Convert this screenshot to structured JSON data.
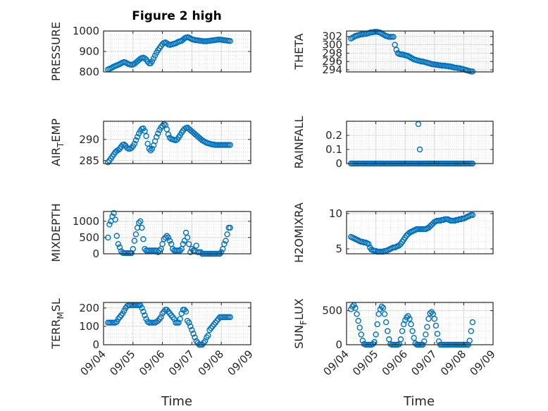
{
  "figure": {
    "title": "Figure 2 high"
  },
  "colors": {
    "marker": "#0072BD",
    "axis": "#262626",
    "grid": "#d9d9d9"
  },
  "chart_data": [
    {
      "id": "pressure",
      "type": "scatter",
      "ylabel": "PRESSURE",
      "ylim": [
        800,
        1000
      ],
      "yticks": [
        800,
        900,
        1000
      ],
      "xlim": [
        0,
        5
      ],
      "x": [
        0.15,
        0.2,
        0.25,
        0.3,
        0.35,
        0.4,
        0.45,
        0.5,
        0.55,
        0.6,
        0.65,
        0.7,
        0.75,
        0.8,
        0.85,
        0.9,
        0.95,
        1.0,
        1.05,
        1.1,
        1.15,
        1.2,
        1.25,
        1.3,
        1.35,
        1.4,
        1.45,
        1.5,
        1.55,
        1.6,
        1.65,
        1.7,
        1.75,
        1.8,
        1.85,
        1.9,
        1.95,
        2.0,
        2.05,
        2.1,
        2.15,
        2.2,
        2.25,
        2.3,
        2.35,
        2.4,
        2.45,
        2.5,
        2.55,
        2.6,
        2.65,
        2.7,
        2.75,
        2.8,
        2.85,
        2.9,
        2.95,
        3.0,
        3.05,
        3.1,
        3.15,
        3.2,
        3.25,
        3.3,
        3.35,
        3.4,
        3.45,
        3.5,
        3.55,
        3.6,
        3.65,
        3.7,
        3.75,
        3.8,
        3.85,
        3.9,
        3.95,
        4.0,
        4.05,
        4.1,
        4.15,
        4.2,
        4.25,
        4.3
      ],
      "y": [
        812,
        815,
        818,
        822,
        826,
        829,
        832,
        835,
        838,
        842,
        846,
        848,
        846,
        842,
        838,
        836,
        835,
        836,
        840,
        846,
        852,
        858,
        864,
        868,
        870,
        866,
        860,
        850,
        842,
        842,
        852,
        866,
        880,
        894,
        906,
        916,
        926,
        936,
        942,
        944,
        940,
        934,
        932,
        934,
        936,
        938,
        940,
        944,
        948,
        950,
        952,
        958,
        964,
        968,
        970,
        968,
        964,
        960,
        958,
        956,
        955,
        954,
        953,
        952,
        951,
        950,
        950,
        950,
        951,
        952,
        953,
        954,
        955,
        956,
        957,
        958,
        958,
        957,
        956,
        955,
        954,
        953,
        952,
        951
      ]
    },
    {
      "id": "theta",
      "type": "scatter",
      "ylabel": "THETA",
      "ylim": [
        293.5,
        303.3
      ],
      "yticks": [
        294,
        296,
        298,
        300,
        302
      ],
      "xlim": [
        0,
        5
      ],
      "x": [
        0.15,
        0.2,
        0.25,
        0.3,
        0.35,
        0.4,
        0.45,
        0.5,
        0.55,
        0.6,
        0.65,
        0.7,
        0.75,
        0.8,
        0.85,
        0.9,
        0.95,
        1.0,
        1.05,
        1.1,
        1.15,
        1.2,
        1.25,
        1.3,
        1.35,
        1.4,
        1.45,
        1.5,
        1.55,
        1.6,
        1.65,
        1.7,
        1.75,
        1.8,
        1.85,
        1.9,
        1.95,
        2.0,
        2.05,
        2.1,
        2.15,
        2.2,
        2.25,
        2.3,
        2.35,
        2.4,
        2.45,
        2.5,
        2.55,
        2.6,
        2.65,
        2.7,
        2.75,
        2.8,
        2.85,
        2.9,
        2.95,
        3.0,
        3.05,
        3.1,
        3.15,
        3.2,
        3.25,
        3.3,
        3.35,
        3.4,
        3.45,
        3.5,
        3.55,
        3.6,
        3.65,
        3.7,
        3.75,
        3.8,
        3.85,
        3.9,
        3.95,
        4.0,
        4.05,
        4.1,
        4.15,
        4.2,
        4.25,
        4.3
      ],
      "y": [
        301.5,
        301.7,
        301.9,
        302.1,
        302.2,
        302.3,
        302.4,
        302.5,
        302.5,
        302.6,
        302.6,
        302.7,
        302.8,
        302.9,
        303.0,
        303.0,
        303.1,
        303.1,
        303.1,
        303.0,
        302.9,
        302.7,
        302.5,
        302.3,
        302.1,
        302.0,
        301.9,
        301.9,
        301.9,
        301.9,
        300.0,
        298.8,
        298.0,
        297.8,
        297.7,
        297.7,
        297.6,
        297.5,
        297.4,
        297.3,
        297.1,
        296.9,
        296.7,
        296.5,
        296.4,
        296.3,
        296.2,
        296.1,
        296.0,
        296.0,
        295.9,
        295.8,
        295.7,
        295.6,
        295.5,
        295.4,
        295.3,
        295.3,
        295.2,
        295.2,
        295.1,
        295.1,
        295.0,
        295.0,
        295.0,
        294.9,
        294.9,
        294.8,
        294.8,
        294.7,
        294.6,
        294.5,
        294.5,
        294.4,
        294.4,
        294.3,
        294.2,
        294.1,
        294.0,
        293.9,
        293.8,
        293.7,
        293.6,
        293.6
      ]
    },
    {
      "id": "air_temp",
      "type": "scatter",
      "ylabel_main": "AIR",
      "ylabel_sub": "T",
      "ylabel_tail": "EMP",
      "ylim": [
        284.3,
        294.3
      ],
      "yticks": [
        285,
        290
      ],
      "xlim": [
        0,
        5
      ],
      "x": [
        0.15,
        0.2,
        0.25,
        0.3,
        0.35,
        0.4,
        0.45,
        0.5,
        0.55,
        0.6,
        0.65,
        0.7,
        0.75,
        0.8,
        0.85,
        0.9,
        0.95,
        1.0,
        1.05,
        1.1,
        1.15,
        1.2,
        1.25,
        1.3,
        1.35,
        1.4,
        1.45,
        1.5,
        1.55,
        1.6,
        1.65,
        1.7,
        1.75,
        1.8,
        1.85,
        1.9,
        1.95,
        2.0,
        2.05,
        2.1,
        2.15,
        2.2,
        2.25,
        2.3,
        2.35,
        2.4,
        2.45,
        2.5,
        2.55,
        2.6,
        2.65,
        2.7,
        2.75,
        2.8,
        2.85,
        2.9,
        2.95,
        3.0,
        3.05,
        3.1,
        3.15,
        3.2,
        3.25,
        3.3,
        3.35,
        3.4,
        3.45,
        3.5,
        3.55,
        3.6,
        3.65,
        3.7,
        3.75,
        3.8,
        3.85,
        3.9,
        3.95,
        4.0,
        4.05,
        4.1,
        4.15,
        4.2,
        4.25,
        4.3
      ],
      "y": [
        284.6,
        285.0,
        285.5,
        286.0,
        286.5,
        287.0,
        287.3,
        287.5,
        287.8,
        288.3,
        288.7,
        288.8,
        288.5,
        288.0,
        287.8,
        287.8,
        288.0,
        288.4,
        289.0,
        289.8,
        290.6,
        291.4,
        292.0,
        292.5,
        292.6,
        292.0,
        290.8,
        289.0,
        287.8,
        287.4,
        287.8,
        288.6,
        289.6,
        290.6,
        291.4,
        292.2,
        292.8,
        293.2,
        293.6,
        293.4,
        292.4,
        291.2,
        290.4,
        290.1,
        290.0,
        289.9,
        289.8,
        290.0,
        290.5,
        291.0,
        291.6,
        292.1,
        292.5,
        292.7,
        292.8,
        292.5,
        292.2,
        291.9,
        291.6,
        291.3,
        291.0,
        290.7,
        290.4,
        290.1,
        289.8,
        289.6,
        289.4,
        289.2,
        289.1,
        289.0,
        288.9,
        288.8,
        288.8,
        288.7,
        288.7,
        288.7,
        288.7,
        288.7,
        288.7,
        288.7,
        288.7,
        288.7,
        288.7,
        288.7
      ]
    },
    {
      "id": "rainfall",
      "type": "scatter",
      "ylabel": "RAINFALL",
      "ylim": [
        0,
        0.3
      ],
      "yticks": [
        0,
        0.1,
        0.2
      ],
      "yticklabels": [
        "0",
        "0.1",
        "0.2"
      ],
      "xlim": [
        0,
        5
      ],
      "x_range": [
        0.15,
        4.3
      ],
      "x_step": 0.05,
      "baseline": 0,
      "extra_points": [
        {
          "x": 2.45,
          "y": 0.28
        },
        {
          "x": 2.5,
          "y": 0.1
        }
      ]
    },
    {
      "id": "mixdepth",
      "type": "scatter",
      "ylabel": "MIXDEPTH",
      "ylim": [
        0,
        1300
      ],
      "yticks": [
        0,
        500,
        1000
      ],
      "xlim": [
        0,
        5
      ],
      "x": [
        0.15,
        0.2,
        0.25,
        0.3,
        0.35,
        0.4,
        0.45,
        0.5,
        0.55,
        0.6,
        0.65,
        0.7,
        0.75,
        0.8,
        0.85,
        0.9,
        0.95,
        1.0,
        1.05,
        1.1,
        1.15,
        1.2,
        1.25,
        1.3,
        1.35,
        1.4,
        1.45,
        1.5,
        1.55,
        1.6,
        1.65,
        1.7,
        1.75,
        1.8,
        1.85,
        1.9,
        1.95,
        2.0,
        2.05,
        2.1,
        2.15,
        2.2,
        2.25,
        2.3,
        2.35,
        2.4,
        2.45,
        2.5,
        2.55,
        2.6,
        2.65,
        2.7,
        2.75,
        2.8,
        2.85,
        2.9,
        2.95,
        3.0,
        3.05,
        3.1,
        3.15,
        3.2,
        3.25,
        3.3,
        3.35,
        3.4,
        3.45,
        3.5,
        3.55,
        3.6,
        3.65,
        3.7,
        3.75,
        3.8,
        3.85,
        3.9,
        3.95,
        4.0,
        4.05,
        4.1,
        4.15,
        4.2,
        4.25,
        4.3
      ],
      "y": [
        500,
        900,
        1000,
        1150,
        1250,
        1050,
        550,
        300,
        200,
        80,
        30,
        20,
        20,
        20,
        20,
        20,
        20,
        150,
        400,
        600,
        800,
        950,
        1000,
        800,
        450,
        150,
        100,
        100,
        100,
        100,
        100,
        100,
        100,
        100,
        50,
        100,
        150,
        300,
        450,
        500,
        550,
        500,
        400,
        300,
        150,
        100,
        100,
        100,
        100,
        100,
        150,
        300,
        400,
        650,
        500,
        300,
        50,
        150,
        100,
        100,
        250,
        50,
        50,
        50,
        0,
        0,
        0,
        0,
        0,
        0,
        0,
        0,
        0,
        0,
        0,
        0,
        0,
        50,
        150,
        300,
        400,
        600,
        800,
        800
      ]
    },
    {
      "id": "h2omixra",
      "type": "scatter",
      "ylabel": "H2OMIXRA",
      "ylim": [
        4.3,
        10.3
      ],
      "yticks": [
        5,
        10
      ],
      "xlim": [
        0,
        5
      ],
      "x": [
        0.15,
        0.2,
        0.25,
        0.3,
        0.35,
        0.4,
        0.45,
        0.5,
        0.55,
        0.6,
        0.65,
        0.7,
        0.75,
        0.8,
        0.85,
        0.9,
        0.95,
        1.0,
        1.05,
        1.1,
        1.15,
        1.2,
        1.25,
        1.3,
        1.35,
        1.4,
        1.45,
        1.5,
        1.55,
        1.6,
        1.65,
        1.7,
        1.75,
        1.8,
        1.85,
        1.9,
        1.95,
        2.0,
        2.05,
        2.1,
        2.15,
        2.2,
        2.25,
        2.3,
        2.35,
        2.4,
        2.45,
        2.5,
        2.55,
        2.6,
        2.65,
        2.7,
        2.75,
        2.8,
        2.85,
        2.9,
        2.95,
        3.0,
        3.05,
        3.1,
        3.15,
        3.2,
        3.25,
        3.3,
        3.35,
        3.4,
        3.45,
        3.5,
        3.55,
        3.6,
        3.65,
        3.7,
        3.75,
        3.8,
        3.85,
        3.9,
        3.95,
        4.0,
        4.05,
        4.1,
        4.15,
        4.2,
        4.25,
        4.3
      ],
      "y": [
        6.7,
        6.6,
        6.5,
        6.4,
        6.3,
        6.2,
        6.1,
        6.0,
        6.0,
        5.9,
        5.9,
        5.8,
        5.7,
        5.2,
        4.9,
        4.8,
        4.7,
        4.7,
        4.6,
        4.6,
        4.6,
        4.6,
        4.6,
        4.7,
        4.7,
        4.8,
        4.9,
        5.0,
        5.1,
        5.2,
        5.2,
        5.3,
        5.4,
        5.5,
        5.7,
        6.0,
        6.3,
        6.6,
        6.9,
        7.1,
        7.3,
        7.4,
        7.5,
        7.6,
        7.7,
        7.8,
        7.8,
        7.8,
        7.8,
        7.8,
        7.8,
        7.8,
        7.9,
        8.0,
        8.2,
        8.4,
        8.6,
        8.8,
        8.9,
        9.0,
        9.0,
        9.0,
        9.1,
        9.1,
        9.2,
        9.2,
        9.2,
        9.1,
        9.0,
        9.0,
        9.0,
        9.0,
        9.1,
        9.1,
        9.2,
        9.2,
        9.3,
        9.3,
        9.4,
        9.5,
        9.6,
        9.7,
        9.8,
        9.8
      ]
    },
    {
      "id": "terr_msl",
      "type": "scatter",
      "ylabel_main": "TERR",
      "ylabel_sub": "M",
      "ylabel_tail": "SL",
      "ylim": [
        0,
        230
      ],
      "yticks": [
        0,
        100,
        200
      ],
      "xlim": [
        0,
        5
      ],
      "x": [
        0.15,
        0.2,
        0.25,
        0.3,
        0.35,
        0.4,
        0.45,
        0.5,
        0.55,
        0.6,
        0.65,
        0.7,
        0.75,
        0.8,
        0.85,
        0.9,
        0.95,
        1.0,
        1.05,
        1.1,
        1.15,
        1.2,
        1.25,
        1.3,
        1.35,
        1.4,
        1.45,
        1.5,
        1.55,
        1.6,
        1.65,
        1.7,
        1.75,
        1.8,
        1.85,
        1.9,
        1.95,
        2.0,
        2.05,
        2.1,
        2.15,
        2.2,
        2.25,
        2.3,
        2.35,
        2.4,
        2.45,
        2.5,
        2.55,
        2.6,
        2.65,
        2.7,
        2.75,
        2.8,
        2.85,
        2.9,
        2.95,
        3.0,
        3.05,
        3.1,
        3.15,
        3.2,
        3.25,
        3.3,
        3.35,
        3.4,
        3.45,
        3.5,
        3.55,
        3.6,
        3.65,
        3.7,
        3.75,
        3.8,
        3.85,
        3.9,
        3.95,
        4.0,
        4.05,
        4.1,
        4.15,
        4.2,
        4.25,
        4.3
      ],
      "y": [
        120,
        120,
        120,
        120,
        120,
        120,
        125,
        140,
        150,
        160,
        170,
        185,
        200,
        210,
        215,
        215,
        215,
        215,
        215,
        215,
        215,
        215,
        215,
        200,
        180,
        160,
        140,
        125,
        120,
        120,
        120,
        120,
        120,
        125,
        130,
        140,
        150,
        170,
        180,
        190,
        190,
        180,
        170,
        160,
        150,
        140,
        120,
        120,
        120,
        140,
        170,
        190,
        190,
        180,
        130,
        120,
        100,
        80,
        60,
        40,
        20,
        10,
        0,
        0,
        0,
        10,
        20,
        40,
        50,
        80,
        90,
        100,
        110,
        120,
        130,
        140,
        150,
        150,
        150,
        150,
        150,
        150,
        150,
        150
      ]
    },
    {
      "id": "sun_flux",
      "type": "scatter",
      "ylabel_main": "SUN",
      "ylabel_sub": "F",
      "ylabel_tail": "LUX",
      "ylim": [
        0,
        620
      ],
      "yticks": [
        0,
        500
      ],
      "xlim": [
        0,
        5
      ],
      "x": [
        0.15,
        0.2,
        0.25,
        0.3,
        0.35,
        0.4,
        0.45,
        0.5,
        0.55,
        0.6,
        0.65,
        0.7,
        0.75,
        0.8,
        0.85,
        0.9,
        0.95,
        1.0,
        1.05,
        1.1,
        1.15,
        1.2,
        1.25,
        1.3,
        1.35,
        1.4,
        1.45,
        1.5,
        1.55,
        1.6,
        1.65,
        1.7,
        1.75,
        1.8,
        1.85,
        1.9,
        1.95,
        2.0,
        2.05,
        2.1,
        2.15,
        2.2,
        2.25,
        2.3,
        2.35,
        2.4,
        2.45,
        2.5,
        2.55,
        2.6,
        2.65,
        2.7,
        2.75,
        2.8,
        2.85,
        2.9,
        2.95,
        3.0,
        3.05,
        3.1,
        3.15,
        3.2,
        3.25,
        3.3,
        3.35,
        3.4,
        3.45,
        3.5,
        3.55,
        3.6,
        3.65,
        3.7,
        3.75,
        3.8,
        3.85,
        3.9,
        3.95,
        4.0,
        4.05,
        4.1,
        4.15,
        4.2,
        4.25,
        4.3
      ],
      "y": [
        520,
        560,
        580,
        540,
        450,
        350,
        250,
        150,
        60,
        10,
        0,
        0,
        0,
        0,
        0,
        10,
        40,
        150,
        300,
        450,
        520,
        560,
        540,
        450,
        330,
        200,
        80,
        10,
        0,
        0,
        0,
        0,
        0,
        10,
        80,
        200,
        300,
        360,
        400,
        420,
        380,
        300,
        200,
        100,
        20,
        0,
        0,
        0,
        0,
        0,
        50,
        150,
        260,
        380,
        460,
        480,
        450,
        380,
        280,
        160,
        50,
        0,
        0,
        0,
        0,
        0,
        0,
        0,
        0,
        0,
        0,
        0,
        0,
        0,
        0,
        0,
        0,
        0,
        0,
        0,
        0,
        60,
        200,
        330
      ]
    }
  ],
  "x_axis": {
    "tick_values": [
      0,
      1,
      2,
      3,
      4,
      5
    ],
    "tick_labels": [
      "09/04",
      "09/05",
      "09/06",
      "09/07",
      "09/08",
      "09/09"
    ],
    "label": "Time"
  }
}
